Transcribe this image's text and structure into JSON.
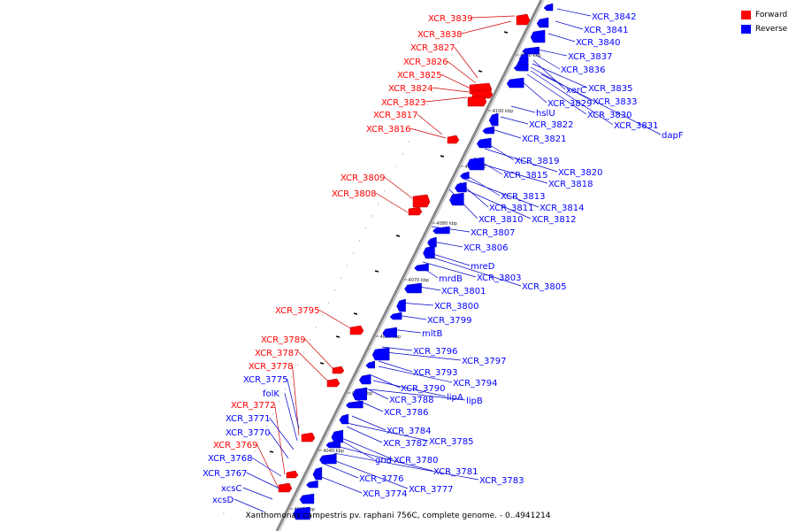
{
  "legend": {
    "items": [
      {
        "label": "Forward",
        "color": "#ff0000"
      },
      {
        "label": "Reverse",
        "color": "#0000ff"
      }
    ]
  },
  "caption": "Xanthomonas campestris pv. raphani 756C, complete genome. - 0..4941214",
  "colors": {
    "forward": "#ff0000",
    "reverse": "#0000ff",
    "leader": "#0000cc",
    "leader_fwd": "#cc0000",
    "backbone": "#888888"
  },
  "ticks": [
    "4030 kbp",
    "4040 kbp",
    "4050 kbp",
    "4060 kbp",
    "4070 kbp",
    "4080 kbp",
    "4090 kbp",
    "4100 kbp",
    "4110 kbp"
  ],
  "forward_labels": [
    "XCR_3839",
    "XCR_3838",
    "XCR_3827",
    "XCR_3826",
    "XCR_3825",
    "XCR_3824",
    "XCR_3823",
    "XCR_3817",
    "XCR_3816",
    "XCR_3809",
    "XCR_3808",
    "XCR_3795",
    "XCR_3789",
    "XCR_3787",
    "XCR_3778",
    "XCR_3772",
    "XCR_3769"
  ],
  "reverse_labels": [
    "XCR_3842",
    "XCR_3841",
    "XCR_3840",
    "XCR_3837",
    "XCR_3836",
    "xerC",
    "XCR_3835",
    "XCR_3833",
    "XCR_3829",
    "XCR_3830",
    "XCR_3831",
    "dapF",
    "hslU",
    "XCR_3822",
    "XCR_3821",
    "XCR_3819",
    "XCR_3820",
    "XCR_3815",
    "XCR_3818",
    "XCR_3813",
    "XCR_3811",
    "XCR_3814",
    "XCR_3810",
    "XCR_3812",
    "XCR_3807",
    "XCR_3806",
    "mreD",
    "mrdB",
    "XCR_3803",
    "XCR_3805",
    "XCR_3801",
    "XCR_3800",
    "XCR_3799",
    "mltB",
    "XCR_3796",
    "XCR_3797",
    "XCR_3793",
    "XCR_3794",
    "XCR_3790",
    "lipA",
    "XCR_3788",
    "lipB",
    "XCR_3786",
    "XCR_3784",
    "XCR_3782",
    "XCR_3785",
    "gnd",
    "XCR_3780",
    "XCR_3781",
    "XCR_3783",
    "XCR_3776",
    "XCR_3777",
    "XCR_3774",
    "XCR_3775",
    "folK",
    "XCR_3771",
    "XCR_3770",
    "XCR_3768",
    "XCR_3767",
    "xcsC",
    "xcsD"
  ]
}
